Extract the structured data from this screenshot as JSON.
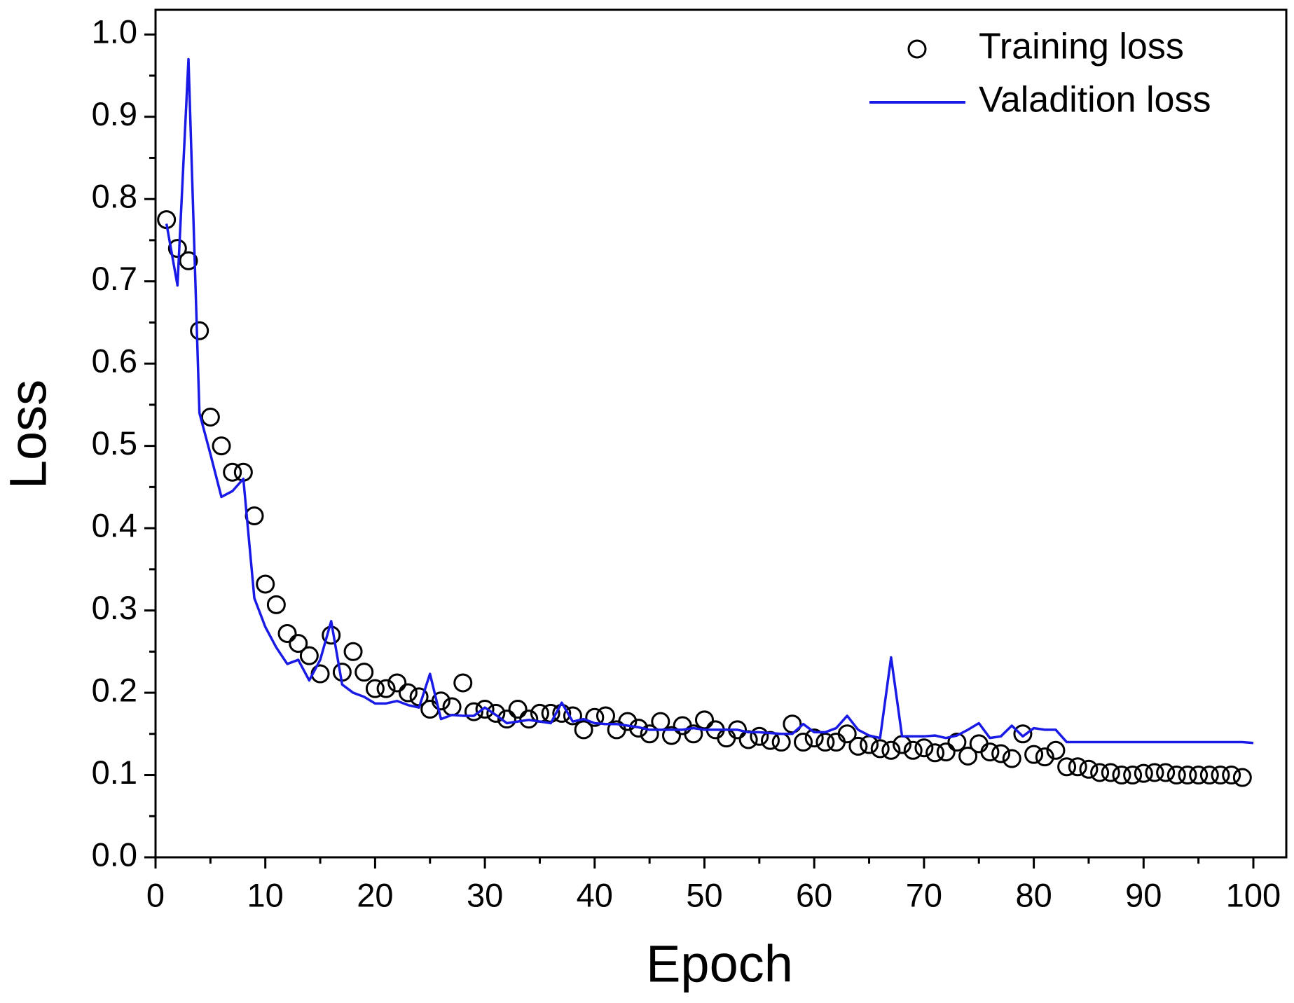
{
  "chart_data": {
    "type": "line",
    "x_label": "Epoch",
    "y_label": "Loss",
    "x": [
      1,
      2,
      3,
      4,
      5,
      6,
      7,
      8,
      9,
      10,
      11,
      12,
      13,
      14,
      15,
      16,
      17,
      18,
      19,
      20,
      21,
      22,
      23,
      24,
      25,
      26,
      27,
      28,
      29,
      30,
      31,
      32,
      33,
      34,
      35,
      36,
      37,
      38,
      39,
      40,
      41,
      42,
      43,
      44,
      45,
      46,
      47,
      48,
      49,
      50,
      51,
      52,
      53,
      54,
      55,
      56,
      57,
      58,
      59,
      60,
      61,
      62,
      63,
      64,
      65,
      66,
      67,
      68,
      69,
      70,
      71,
      72,
      73,
      74,
      75,
      76,
      77,
      78,
      79,
      80,
      81,
      82,
      83,
      84,
      85,
      86,
      87,
      88,
      89,
      90,
      91,
      92,
      93,
      94,
      95,
      96,
      97,
      98,
      99,
      100
    ],
    "series": [
      {
        "name": "Training loss",
        "marker": "circle",
        "color": "#000000",
        "values": [
          0.775,
          0.74,
          0.725,
          0.64,
          0.535,
          0.5,
          0.468,
          0.468,
          0.415,
          0.332,
          0.307,
          0.272,
          0.26,
          0.245,
          0.223,
          0.27,
          0.225,
          0.25,
          0.225,
          0.205,
          0.205,
          0.212,
          0.2,
          0.195,
          0.18,
          0.19,
          0.183,
          0.212,
          0.177,
          0.18,
          0.175,
          0.168,
          0.18,
          0.168,
          0.175,
          0.175,
          0.175,
          0.172,
          0.155,
          0.17,
          0.172,
          0.155,
          0.165,
          0.157,
          0.15,
          0.165,
          0.148,
          0.16,
          0.15,
          0.167,
          0.155,
          0.145,
          0.155,
          0.143,
          0.147,
          0.142,
          0.14,
          0.162,
          0.14,
          0.145,
          0.14,
          0.14,
          0.15,
          0.135,
          0.137,
          0.132,
          0.13,
          0.137,
          0.13,
          0.133,
          0.127,
          0.128,
          0.14,
          0.123,
          0.138,
          0.128,
          0.126,
          0.12,
          0.15,
          0.125,
          0.122,
          0.13,
          0.11,
          0.11,
          0.107,
          0.103,
          0.103,
          0.1,
          0.1,
          0.102,
          0.103,
          0.103,
          0.1,
          0.1,
          0.1,
          0.1,
          0.1,
          0.1,
          0.097,
          null
        ]
      },
      {
        "name": "Valadition loss",
        "marker": "line",
        "color": "#1a1ae6",
        "values": [
          0.77,
          0.695,
          0.97,
          0.54,
          0.49,
          0.438,
          0.445,
          0.46,
          0.315,
          0.28,
          0.255,
          0.235,
          0.24,
          0.215,
          0.24,
          0.287,
          0.21,
          0.2,
          0.195,
          0.187,
          0.187,
          0.19,
          0.185,
          0.182,
          0.223,
          0.168,
          0.173,
          0.172,
          0.172,
          0.182,
          0.173,
          0.163,
          0.165,
          0.167,
          0.165,
          0.163,
          0.188,
          0.165,
          0.168,
          0.163,
          0.162,
          0.162,
          0.16,
          0.158,
          0.155,
          0.155,
          0.155,
          0.155,
          0.157,
          0.155,
          0.155,
          0.155,
          0.155,
          0.152,
          0.152,
          0.151,
          0.15,
          0.15,
          0.162,
          0.152,
          0.152,
          0.157,
          0.172,
          0.155,
          0.148,
          0.145,
          0.243,
          0.147,
          0.147,
          0.147,
          0.148,
          0.145,
          0.148,
          0.155,
          0.163,
          0.145,
          0.147,
          0.16,
          0.147,
          0.157,
          0.155,
          0.155,
          0.14,
          0.14,
          0.14,
          0.14,
          0.14,
          0.14,
          0.14,
          0.14,
          0.14,
          0.14,
          0.14,
          0.14,
          0.14,
          0.14,
          0.14,
          0.14,
          0.14,
          0.139
        ]
      }
    ],
    "xlim": [
      0,
      103
    ],
    "ylim": [
      0,
      1.03
    ],
    "xticks": [
      0,
      10,
      20,
      30,
      40,
      50,
      60,
      70,
      80,
      90,
      100
    ],
    "yticks": [
      {
        "value": 0,
        "label": "0.0"
      },
      0.1,
      0.2,
      0.3,
      0.4,
      0.5,
      0.6,
      0.7,
      0.8,
      0.9,
      {
        "value": 1,
        "label": "1.0"
      }
    ],
    "legend": "upper right"
  }
}
